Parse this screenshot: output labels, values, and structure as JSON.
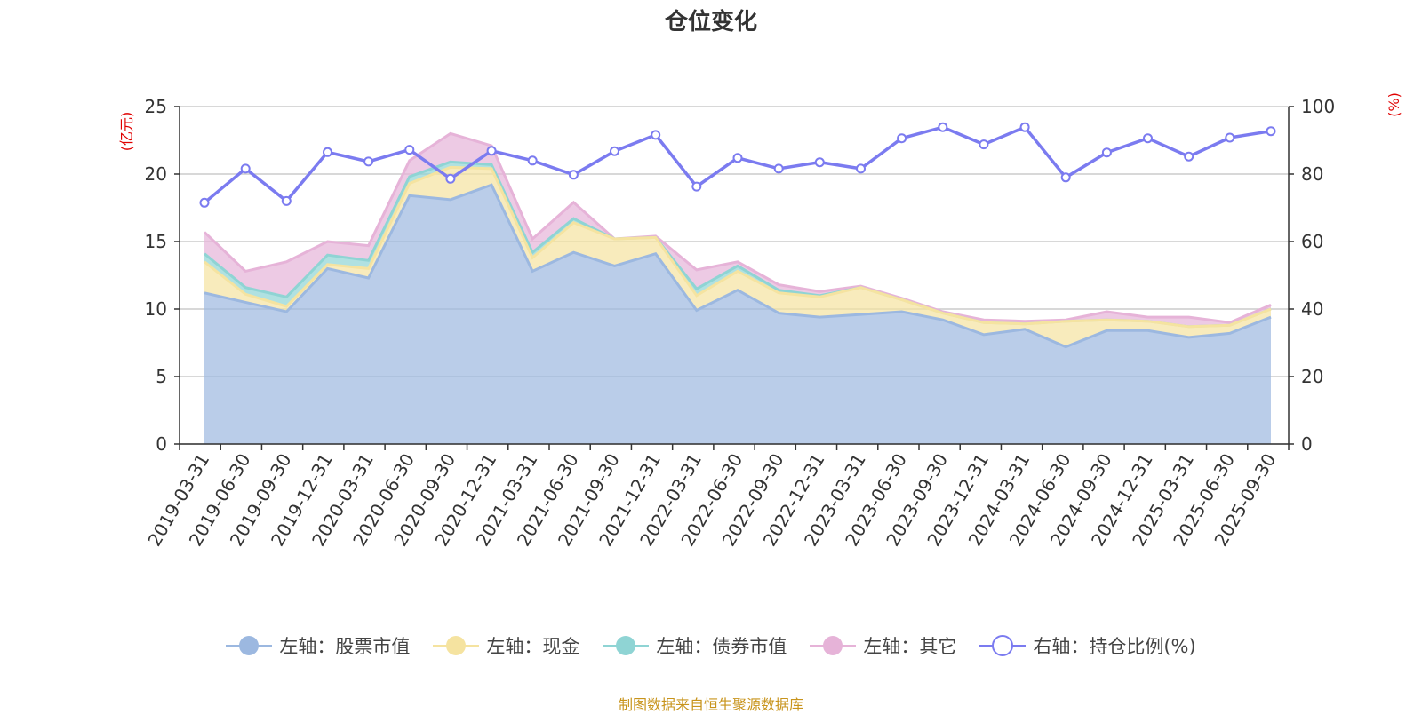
{
  "chart_data": {
    "type": "area",
    "title": "仓位变化",
    "left_unit": "(亿元)",
    "right_unit": "(%)",
    "y_left_lim": [
      0,
      25
    ],
    "y_left_ticks": [
      "0",
      "5",
      "10",
      "15",
      "20",
      "25"
    ],
    "y_right_lim": [
      0,
      100
    ],
    "y_right_ticks": [
      "0",
      "20",
      "40",
      "60",
      "80",
      "100"
    ],
    "grid": true,
    "legend_position": "bottom",
    "categories": [
      "2019-03-31",
      "2019-06-30",
      "2019-09-30",
      "2019-12-31",
      "2020-03-31",
      "2020-06-30",
      "2020-09-30",
      "2020-12-31",
      "2021-03-31",
      "2021-06-30",
      "2021-09-30",
      "2021-12-31",
      "2022-03-31",
      "2022-06-30",
      "2022-09-30",
      "2022-12-31",
      "2023-03-31",
      "2023-06-30",
      "2023-09-30",
      "2023-12-31",
      "2024-03-31",
      "2024-06-30",
      "2024-09-30",
      "2024-12-31",
      "2025-03-31",
      "2025-06-30",
      "2025-09-30"
    ],
    "series": [
      {
        "name": "左轴：股票市值",
        "axis": "left",
        "kind": "stack-area",
        "color": "#9cb8e0",
        "values": [
          11.2,
          10.5,
          9.8,
          13.0,
          12.3,
          18.4,
          18.1,
          19.2,
          12.8,
          14.2,
          13.2,
          14.1,
          9.9,
          11.4,
          9.7,
          9.4,
          9.6,
          9.8,
          9.2,
          8.1,
          8.5,
          7.2,
          8.4,
          8.4,
          7.9,
          8.2,
          9.4
        ]
      },
      {
        "name": "左轴：现金",
        "axis": "left",
        "kind": "stack-area",
        "color": "#f5e3a0",
        "values": [
          2.3,
          0.6,
          0.4,
          0.3,
          0.7,
          0.9,
          2.4,
          1.2,
          1.0,
          2.2,
          2.0,
          1.2,
          1.1,
          1.4,
          1.5,
          1.5,
          2.0,
          0.9,
          0.5,
          0.9,
          0.4,
          1.9,
          0.8,
          0.7,
          0.8,
          0.6,
          0.6
        ]
      },
      {
        "name": "左轴：债券市值",
        "axis": "left",
        "kind": "stack-area",
        "color": "#8fd4d4",
        "values": [
          0.6,
          0.5,
          0.7,
          0.7,
          0.6,
          0.5,
          0.4,
          0.3,
          0.4,
          0.3,
          0.0,
          0.0,
          0.5,
          0.4,
          0.2,
          0.1,
          0.0,
          0.0,
          0.0,
          0.0,
          0.0,
          0.0,
          0.0,
          0.0,
          0.0,
          0.0,
          0.0
        ]
      },
      {
        "name": "左轴：其它",
        "axis": "left",
        "kind": "stack-area",
        "color": "#e6b3d8",
        "values": [
          1.6,
          1.2,
          2.6,
          1.0,
          1.1,
          1.2,
          2.1,
          1.4,
          1.0,
          1.2,
          0.0,
          0.1,
          1.4,
          0.3,
          0.4,
          0.3,
          0.1,
          0.1,
          0.1,
          0.2,
          0.2,
          0.1,
          0.6,
          0.3,
          0.7,
          0.2,
          0.3
        ]
      },
      {
        "name": "右轴：持仓比例(%)",
        "axis": "right",
        "kind": "line",
        "color": "#7b7bf0",
        "values": [
          71.5,
          81.6,
          72.0,
          86.5,
          83.7,
          87.2,
          78.6,
          86.9,
          84.0,
          79.8,
          86.8,
          91.6,
          76.3,
          84.8,
          81.6,
          83.5,
          81.6,
          90.6,
          93.9,
          88.8,
          93.9,
          79.0,
          86.4,
          90.6,
          85.2,
          90.8,
          92.7
        ]
      }
    ]
  },
  "source_note": "制图数据来自恒生聚源数据库"
}
